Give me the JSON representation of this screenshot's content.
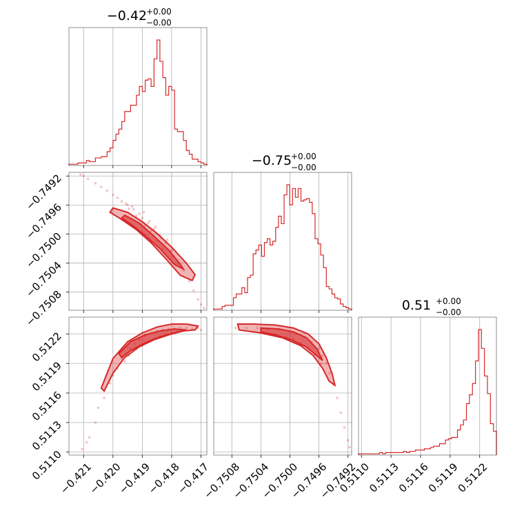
{
  "chart_data": {
    "type": "corner",
    "colors": {
      "accent": "#d62728",
      "grid": "#b0b0b0",
      "frame": "#000000"
    },
    "grid": true,
    "parameters": [
      {
        "title": {
          "main": "−0.42",
          "sup": "+0.00",
          "sub": "−0.00"
        },
        "range": [
          -0.4215,
          -0.4168
        ],
        "ticks": [
          -0.421,
          -0.42,
          -0.419,
          -0.418,
          -0.417
        ],
        "tick_labels": [
          "−0.421",
          "−0.420",
          "−0.419",
          "−0.418",
          "−0.417"
        ],
        "hist": [
          1,
          1,
          1,
          2,
          2,
          2,
          4,
          3,
          3,
          6,
          6,
          7,
          7,
          11,
          14,
          20,
          25,
          29,
          35,
          43,
          43,
          48,
          48,
          56,
          63,
          59,
          68,
          69,
          63,
          85,
          100,
          83,
          70,
          56,
          63,
          60,
          29,
          27,
          27,
          20,
          12,
          9,
          5,
          5,
          3,
          2,
          1
        ]
      },
      {
        "title": {
          "main": "−0.75",
          "sup": "+0.00",
          "sub": "−0.00"
        },
        "range": [
          -0.75105,
          -0.74915
        ],
        "ticks": [
          -0.7508,
          -0.7504,
          -0.75,
          -0.7496,
          -0.7492
        ],
        "tick_labels": [
          "−0.7508",
          "−0.7504",
          "−0.7500",
          "−0.7496",
          "−0.7492"
        ],
        "hist": [
          1,
          1,
          1,
          3,
          4,
          4,
          4,
          10,
          13,
          13,
          18,
          14,
          26,
          28,
          45,
          48,
          52,
          43,
          54,
          57,
          52,
          55,
          66,
          75,
          69,
          92,
          100,
          84,
          97,
          90,
          97,
          87,
          88,
          89,
          86,
          77,
          57,
          53,
          44,
          34,
          19,
          17,
          13,
          10,
          9,
          5,
          3,
          2,
          1
        ]
      },
      {
        "title": {
          "main": "0.51",
          "sup": "+0.00",
          "sub": "−0.00"
        },
        "range": [
          0.51097,
          0.51237
        ],
        "ticks": [
          0.511,
          0.5113,
          0.5116,
          0.5119,
          0.5122
        ],
        "tick_labels": [
          "0.5110",
          "0.5113",
          "0.5116",
          "0.5119",
          "0.5122"
        ],
        "hist": [
          1,
          1,
          1,
          1,
          1,
          1,
          1,
          2,
          1,
          2,
          2,
          2,
          2,
          2,
          2,
          3,
          2,
          3,
          3,
          4,
          4,
          4,
          5,
          5,
          6,
          7,
          7,
          9,
          9,
          12,
          13,
          14,
          14,
          20,
          24,
          28,
          41,
          48,
          57,
          75,
          100,
          85,
          63,
          49,
          25,
          19
        ]
      }
    ],
    "pair_points": {
      "p1_p0": [
        [
          -0.4211,
          -0.74918
        ],
        [
          -0.421,
          -0.7492
        ],
        [
          -0.42085,
          -0.74924
        ],
        [
          -0.4206,
          -0.7493
        ],
        [
          -0.4204,
          -0.74935
        ],
        [
          -0.4202,
          -0.7494
        ],
        [
          -0.42,
          -0.74946
        ],
        [
          -0.41985,
          -0.7495
        ],
        [
          -0.4197,
          -0.74955
        ],
        [
          -0.4195,
          -0.7496
        ],
        [
          -0.4193,
          -0.74966
        ],
        [
          -0.4191,
          -0.74972
        ],
        [
          -0.419,
          -0.74978
        ],
        [
          -0.4188,
          -0.74985
        ],
        [
          -0.4186,
          -0.74993
        ],
        [
          -0.4184,
          -0.75002
        ],
        [
          -0.4182,
          -0.75012
        ],
        [
          -0.418,
          -0.75023
        ],
        [
          -0.4178,
          -0.75036
        ],
        [
          -0.4176,
          -0.7505
        ],
        [
          -0.4174,
          -0.75065
        ],
        [
          -0.41725,
          -0.75078
        ],
        [
          -0.4171,
          -0.7509
        ],
        [
          -0.417,
          -0.75097
        ],
        [
          -0.4169,
          -0.75102
        ],
        [
          -0.41955,
          -0.74958
        ],
        [
          -0.41945,
          -0.74965
        ],
        [
          -0.41935,
          -0.74962
        ],
        [
          -0.41895,
          -0.7497
        ],
        [
          -0.41875,
          -0.74982
        ],
        [
          -0.41855,
          -0.7499
        ],
        [
          -0.41835,
          -0.75005
        ],
        [
          -0.41815,
          -0.75008
        ],
        [
          -0.41795,
          -0.7503
        ],
        [
          -0.41775,
          -0.7504
        ],
        [
          -0.4192,
          -0.74975
        ],
        [
          -0.4189,
          -0.74988
        ],
        [
          -0.4187,
          -0.74996
        ],
        [
          -0.4185,
          -0.7501
        ],
        [
          -0.4183,
          -0.7502
        ]
      ],
      "p2_p0": [
        [
          -0.42105,
          0.51103
        ],
        [
          -0.4209,
          0.5111
        ],
        [
          -0.4208,
          0.51115
        ],
        [
          -0.4206,
          0.5113
        ],
        [
          -0.4205,
          0.51145
        ],
        [
          -0.4203,
          0.51155
        ],
        [
          -0.4201,
          0.5117
        ],
        [
          -0.42,
          0.51178
        ],
        [
          -0.41985,
          0.51185
        ],
        [
          -0.4197,
          0.51195
        ],
        [
          -0.41955,
          0.512
        ],
        [
          -0.4194,
          0.51205
        ],
        [
          -0.41925,
          0.5121
        ],
        [
          -0.4191,
          0.51214
        ],
        [
          -0.4189,
          0.51218
        ],
        [
          -0.4187,
          0.51221
        ],
        [
          -0.4185,
          0.51223
        ],
        [
          -0.4183,
          0.51224
        ],
        [
          -0.4181,
          0.51225
        ],
        [
          -0.4179,
          0.51225
        ],
        [
          -0.4177,
          0.51226
        ],
        [
          -0.4175,
          0.51226
        ],
        [
          -0.4173,
          0.51225
        ],
        [
          -0.4171,
          0.51226
        ],
        [
          -0.417,
          0.51224
        ],
        [
          -0.4196,
          0.51192
        ],
        [
          -0.41945,
          0.51198
        ],
        [
          -0.4192,
          0.51205
        ],
        [
          -0.419,
          0.51208
        ],
        [
          -0.4188,
          0.51212
        ],
        [
          -0.4186,
          0.51215
        ],
        [
          -0.4184,
          0.51217
        ],
        [
          -0.4182,
          0.51219
        ],
        [
          -0.418,
          0.51221
        ],
        [
          -0.4178,
          0.51222
        ]
      ],
      "p2_p1": [
        [
          -0.75075,
          0.51226
        ],
        [
          -0.7506,
          0.51226
        ],
        [
          -0.75045,
          0.51226
        ],
        [
          -0.7503,
          0.51225
        ],
        [
          -0.75015,
          0.51224
        ],
        [
          -0.75,
          0.51222
        ],
        [
          -0.7499,
          0.5122
        ],
        [
          -0.7498,
          0.51217
        ],
        [
          -0.7497,
          0.51212
        ],
        [
          -0.7496,
          0.51205
        ],
        [
          -0.74955,
          0.51198
        ],
        [
          -0.7495,
          0.5119
        ],
        [
          -0.74945,
          0.5118
        ],
        [
          -0.7494,
          0.51168
        ],
        [
          -0.74935,
          0.51155
        ],
        [
          -0.7493,
          0.5114
        ],
        [
          -0.74925,
          0.51125
        ],
        [
          -0.7492,
          0.51112
        ],
        [
          -0.74918,
          0.51105
        ],
        [
          -0.7505,
          0.51222
        ],
        [
          -0.75035,
          0.5122
        ],
        [
          -0.7502,
          0.51219
        ],
        [
          -0.75005,
          0.51217
        ],
        [
          -0.74995,
          0.51215
        ],
        [
          -0.74985,
          0.51211
        ],
        [
          -0.74975,
          0.51206
        ],
        [
          -0.74965,
          0.51199
        ],
        [
          -0.74957,
          0.5119
        ]
      ]
    },
    "pair_contours": {
      "p1_p0": [
        [
          [
            -0.42,
            -0.74964
          ],
          [
            -0.4195,
            -0.7497
          ],
          [
            -0.419,
            -0.74983
          ],
          [
            -0.4185,
            -0.74999
          ],
          [
            -0.418,
            -0.75018
          ],
          [
            -0.4175,
            -0.7504
          ],
          [
            -0.4172,
            -0.75056
          ],
          [
            -0.4173,
            -0.75064
          ],
          [
            -0.4177,
            -0.75057
          ],
          [
            -0.4182,
            -0.75034
          ],
          [
            -0.4187,
            -0.75012
          ],
          [
            -0.4192,
            -0.74994
          ],
          [
            -0.4197,
            -0.7498
          ],
          [
            -0.4201,
            -0.7497
          ]
        ],
        [
          [
            -0.4196,
            -0.74974
          ],
          [
            -0.4191,
            -0.74985
          ],
          [
            -0.4186,
            -0.75003
          ],
          [
            -0.4181,
            -0.75022
          ],
          [
            -0.4177,
            -0.75042
          ],
          [
            -0.4176,
            -0.75048
          ],
          [
            -0.4179,
            -0.75042
          ],
          [
            -0.4184,
            -0.7502
          ],
          [
            -0.4189,
            -0.75002
          ],
          [
            -0.4194,
            -0.74986
          ],
          [
            -0.4197,
            -0.74978
          ]
        ]
      ],
      "p2_p0": [
        [
          [
            -0.4204,
            0.51165
          ],
          [
            -0.42,
            0.51195
          ],
          [
            -0.4195,
            0.51212
          ],
          [
            -0.419,
            0.51221
          ],
          [
            -0.4185,
            0.51227
          ],
          [
            -0.418,
            0.5123
          ],
          [
            -0.4175,
            0.5123
          ],
          [
            -0.4171,
            0.51228
          ],
          [
            -0.4172,
            0.51224
          ],
          [
            -0.4176,
            0.51223
          ],
          [
            -0.4181,
            0.51219
          ],
          [
            -0.4186,
            0.51214
          ],
          [
            -0.4191,
            0.51207
          ],
          [
            -0.4196,
            0.51196
          ],
          [
            -0.42,
            0.5118
          ],
          [
            -0.4203,
            0.51162
          ]
        ],
        [
          [
            -0.4198,
            0.512
          ],
          [
            -0.4194,
            0.51212
          ],
          [
            -0.4189,
            0.51219
          ],
          [
            -0.4184,
            0.51223
          ],
          [
            -0.4179,
            0.51225
          ],
          [
            -0.4175,
            0.51224
          ],
          [
            -0.4179,
            0.51221
          ],
          [
            -0.4184,
            0.51217
          ],
          [
            -0.4189,
            0.51211
          ],
          [
            -0.4194,
            0.51203
          ],
          [
            -0.4197,
            0.51196
          ]
        ]
      ],
      "p2_p1": [
        [
          [
            -0.75072,
            0.5123
          ],
          [
            -0.7505,
            0.5123
          ],
          [
            -0.7502,
            0.51229
          ],
          [
            -0.74995,
            0.51226
          ],
          [
            -0.74975,
            0.5122
          ],
          [
            -0.7496,
            0.5121
          ],
          [
            -0.7495,
            0.51196
          ],
          [
            -0.74942,
            0.5118
          ],
          [
            -0.74938,
            0.51168
          ],
          [
            -0.74946,
            0.51172
          ],
          [
            -0.74955,
            0.51185
          ],
          [
            -0.74968,
            0.51198
          ],
          [
            -0.74985,
            0.51208
          ],
          [
            -0.7501,
            0.51216
          ],
          [
            -0.7504,
            0.51221
          ],
          [
            -0.7507,
            0.51224
          ]
        ],
        [
          [
            -0.7504,
            0.51226
          ],
          [
            -0.75015,
            0.51225
          ],
          [
            -0.74995,
            0.51222
          ],
          [
            -0.74977,
            0.51216
          ],
          [
            -0.74963,
            0.51205
          ],
          [
            -0.74955,
            0.51193
          ],
          [
            -0.74963,
            0.51198
          ],
          [
            -0.74978,
            0.51207
          ],
          [
            -0.74998,
            0.51214
          ],
          [
            -0.7502,
            0.51219
          ],
          [
            -0.7504,
            0.51222
          ]
        ]
      ]
    }
  }
}
